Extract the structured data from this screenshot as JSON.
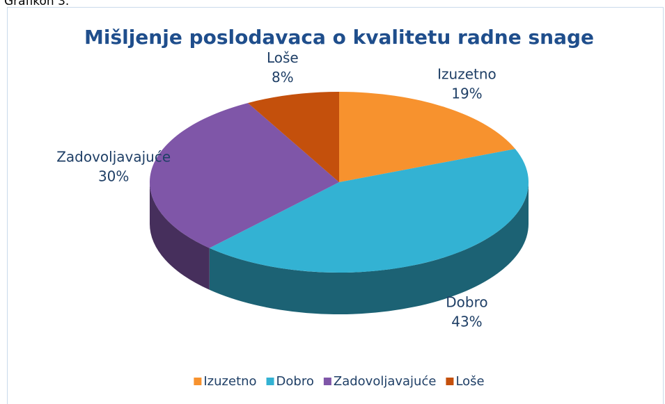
{
  "caption": "Grafikon 3.",
  "chart_data": {
    "type": "pie",
    "title": "Mišljenje poslodavaca o kvalitetu radne snage",
    "categories": [
      "Izuzetno",
      "Dobro",
      "Zadovoljavajuće",
      "Loše"
    ],
    "values": [
      19,
      43,
      30,
      8
    ],
    "value_labels": [
      "19%",
      "43%",
      "30%",
      "8%"
    ],
    "colors": [
      "#f7922e",
      "#33b2d3",
      "#7f56a8",
      "#c4500c"
    ],
    "legend": "bottom"
  }
}
